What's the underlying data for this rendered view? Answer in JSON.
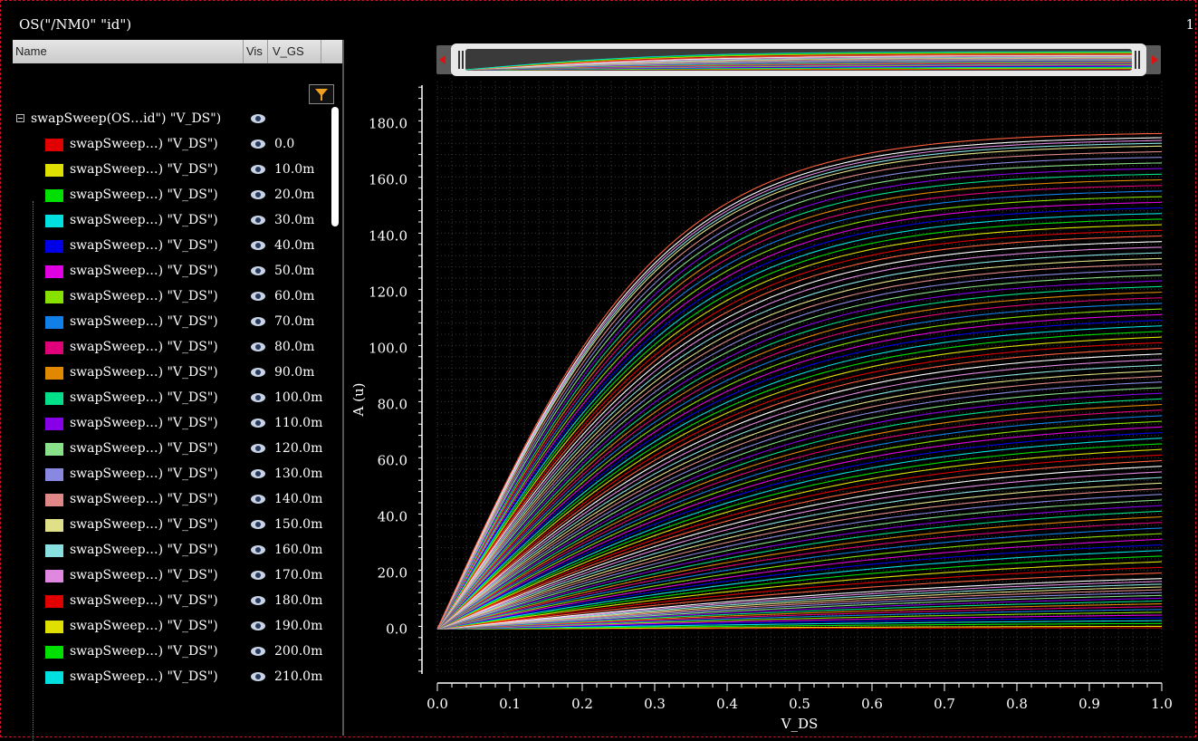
{
  "window": {
    "title": "OS(\"/NM0\" \"id\")",
    "index": "1"
  },
  "legend": {
    "columns": {
      "name": "Name",
      "vis": "Vis",
      "vgs": "V_GS"
    },
    "group_label": "swapSweep(OS…id\") \"V_DS\")",
    "items": [
      {
        "label": "swapSweep…) \"V_DS\")",
        "vgs": "0.0",
        "color": "#e00000"
      },
      {
        "label": "swapSweep…) \"V_DS\")",
        "vgs": "10.0m",
        "color": "#e0e000"
      },
      {
        "label": "swapSweep…) \"V_DS\")",
        "vgs": "20.0m",
        "color": "#00e000"
      },
      {
        "label": "swapSweep…) \"V_DS\")",
        "vgs": "30.0m",
        "color": "#00e0e0"
      },
      {
        "label": "swapSweep…) \"V_DS\")",
        "vgs": "40.0m",
        "color": "#0000e8"
      },
      {
        "label": "swapSweep…) \"V_DS\")",
        "vgs": "50.0m",
        "color": "#e000e0"
      },
      {
        "label": "swapSweep…) \"V_DS\")",
        "vgs": "60.0m",
        "color": "#88e000"
      },
      {
        "label": "swapSweep…) \"V_DS\")",
        "vgs": "70.0m",
        "color": "#1080e8"
      },
      {
        "label": "swapSweep…) \"V_DS\")",
        "vgs": "80.0m",
        "color": "#e0007a"
      },
      {
        "label": "swapSweep…) \"V_DS\")",
        "vgs": "90.0m",
        "color": "#e08800"
      },
      {
        "label": "swapSweep…) \"V_DS\")",
        "vgs": "100.0m",
        "color": "#00e088"
      },
      {
        "label": "swapSweep…) \"V_DS\")",
        "vgs": "110.0m",
        "color": "#8800e8"
      },
      {
        "label": "swapSweep…) \"V_DS\")",
        "vgs": "120.0m",
        "color": "#88e088"
      },
      {
        "label": "swapSweep…) \"V_DS\")",
        "vgs": "130.0m",
        "color": "#8888e0"
      },
      {
        "label": "swapSweep…) \"V_DS\")",
        "vgs": "140.0m",
        "color": "#e08888"
      },
      {
        "label": "swapSweep…) \"V_DS\")",
        "vgs": "150.0m",
        "color": "#e0e088"
      },
      {
        "label": "swapSweep…) \"V_DS\")",
        "vgs": "160.0m",
        "color": "#88e0e0"
      },
      {
        "label": "swapSweep…) \"V_DS\")",
        "vgs": "170.0m",
        "color": "#e088e0"
      },
      {
        "label": "swapSweep…) \"V_DS\")",
        "vgs": "180.0m",
        "color": "#e00000"
      },
      {
        "label": "swapSweep…) \"V_DS\")",
        "vgs": "190.0m",
        "color": "#e0e000"
      },
      {
        "label": "swapSweep…) \"V_DS\")",
        "vgs": "200.0m",
        "color": "#00e000"
      },
      {
        "label": "swapSweep…) \"V_DS\")",
        "vgs": "210.0m",
        "color": "#00e0e0"
      }
    ]
  },
  "chart_data": {
    "type": "line",
    "xlabel": "V_DS",
    "ylabel": "A (u)",
    "xlim": [
      0.0,
      1.0
    ],
    "ylim": [
      -15,
      195
    ],
    "x_ticks": [
      "0.0",
      "0.1",
      "0.2",
      "0.3",
      "0.4",
      "0.5",
      "0.6",
      "0.7",
      "0.8",
      "0.9",
      "1.0"
    ],
    "y_ticks": [
      "0.0",
      "20.0",
      "40.0",
      "60.0",
      "80.0",
      "100.0",
      "120.0",
      "140.0",
      "160.0",
      "180.0"
    ],
    "y_tick_values": [
      0,
      20,
      40,
      60,
      80,
      100,
      120,
      140,
      160,
      180
    ],
    "grid": true,
    "series_note_free": true,
    "curve_family": {
      "count": 100,
      "max_current_at_1V": [
        0.5,
        1,
        2,
        3,
        4,
        5,
        6,
        7,
        8,
        9,
        10,
        11,
        12,
        13,
        14,
        15,
        16,
        17,
        18,
        20,
        22,
        24,
        26,
        28,
        30,
        32,
        34,
        36,
        38,
        40,
        42,
        44,
        46,
        48,
        50,
        52,
        54,
        56,
        58,
        60,
        62,
        64,
        66,
        68,
        70,
        72,
        74,
        76,
        78,
        80,
        82,
        84,
        86,
        88,
        90,
        92,
        94,
        96,
        98,
        100,
        102,
        104,
        106,
        108,
        110,
        112,
        114,
        116,
        118,
        120,
        122,
        124,
        126,
        128,
        130,
        132,
        134,
        136,
        138,
        140,
        142,
        144,
        146,
        148,
        150,
        152,
        154,
        156,
        158,
        160,
        162,
        164,
        166,
        168,
        170,
        172,
        173,
        174,
        175,
        176.5
      ]
    },
    "palette": [
      "#e00000",
      "#e0e000",
      "#00e000",
      "#00e0e0",
      "#0000e8",
      "#e000e0",
      "#88e000",
      "#1080e8",
      "#e0007a",
      "#e08800",
      "#00e088",
      "#8800e8",
      "#88e088",
      "#8888e0",
      "#e08888",
      "#e0e088",
      "#88e0e0",
      "#e088e0",
      "#ffffff",
      "#ff6040"
    ]
  }
}
